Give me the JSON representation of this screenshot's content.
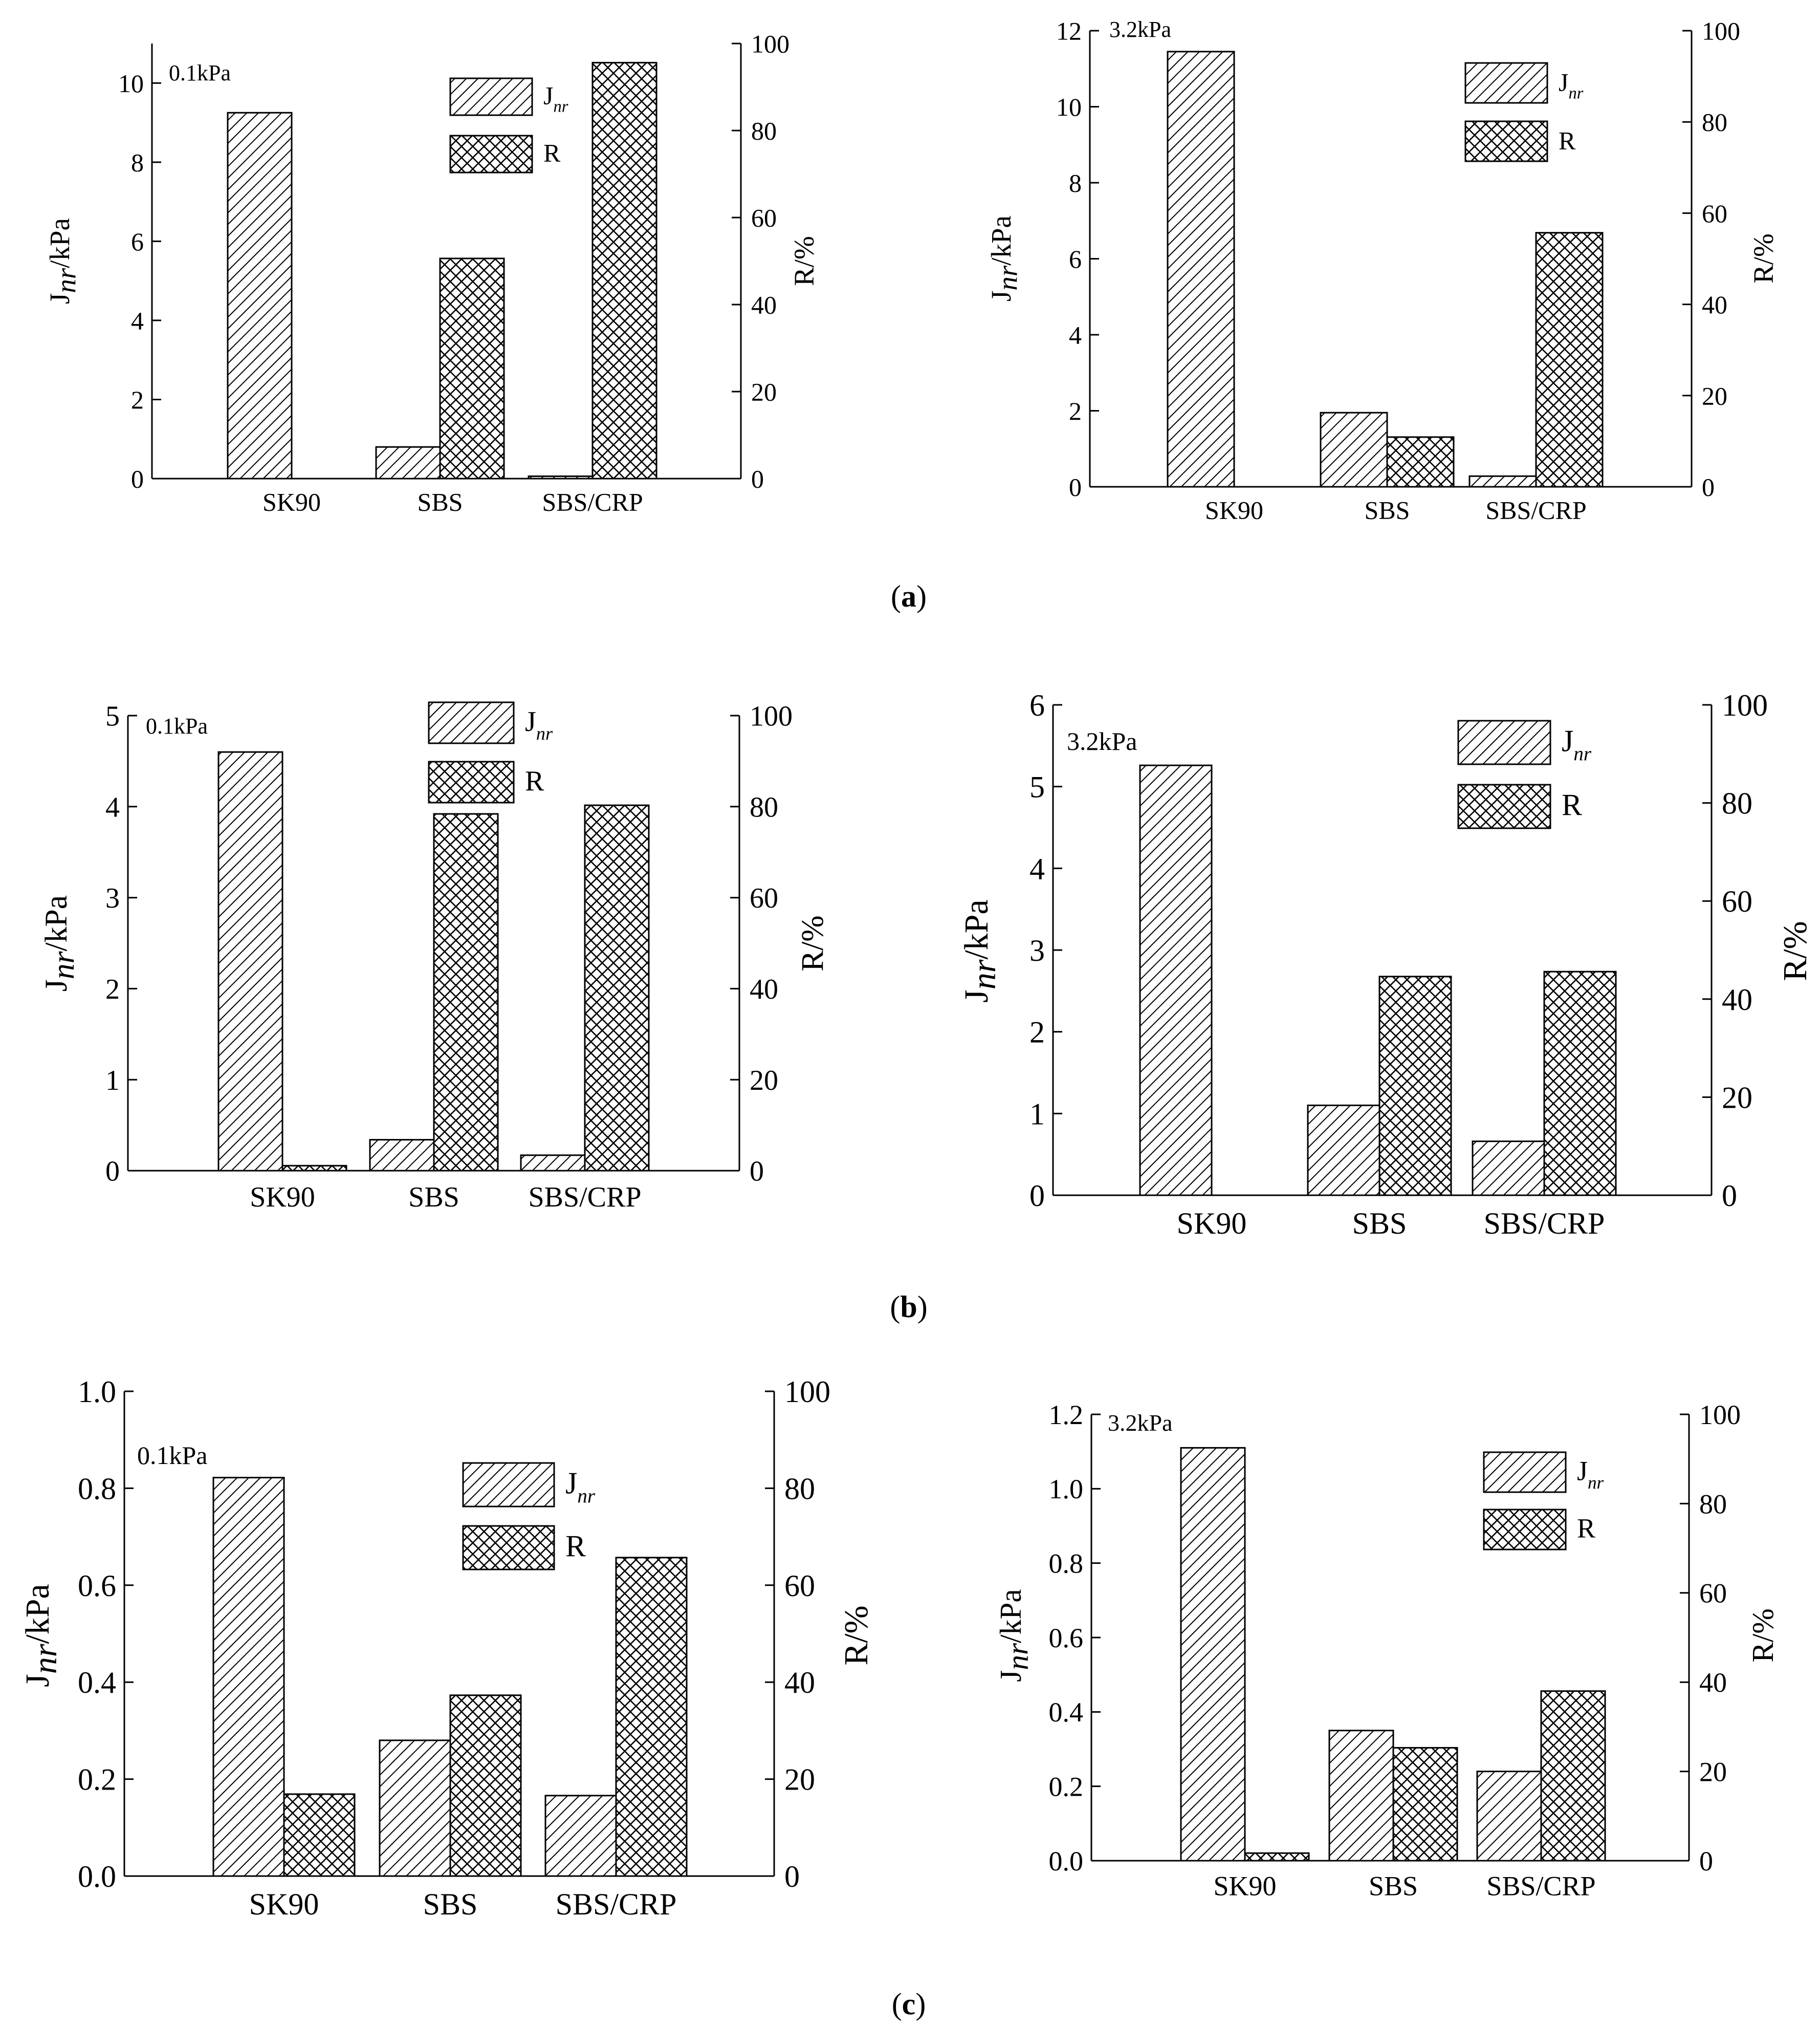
{
  "chart_data": [
    {
      "type": "bar",
      "panel": "a",
      "annotation": "0.1kPa",
      "categories": [
        "SK90",
        "SBS",
        "SBS/CRP"
      ],
      "left_axis": {
        "label": "Jnr/kPa",
        "ylim": [
          0,
          11
        ],
        "ticks": [
          "0",
          "2",
          "4",
          "6",
          "8",
          "10"
        ],
        "tick_values": [
          0,
          2,
          4,
          6,
          8,
          10
        ]
      },
      "right_axis": {
        "label": "R/%",
        "ylim": [
          0,
          100
        ],
        "ticks": [
          "0",
          "20",
          "40",
          "60",
          "80",
          "100"
        ],
        "tick_values": [
          0,
          20,
          40,
          60,
          80,
          100
        ]
      },
      "legend": {
        "entries": [
          "Jnr",
          "R"
        ],
        "position": "top-right"
      },
      "series": [
        {
          "name": "Jnr",
          "axis": "left",
          "values": [
            9.25,
            0.8,
            0.06
          ]
        },
        {
          "name": "R",
          "axis": "right",
          "values": [
            0,
            50.6,
            95.6
          ]
        }
      ]
    },
    {
      "type": "bar",
      "panel": "a",
      "annotation": "3.2kPa",
      "categories": [
        "SK90",
        "SBS",
        "SBS/CRP"
      ],
      "left_axis": {
        "label": "Jnr/kPa",
        "ylim": [
          0,
          12
        ],
        "ticks": [
          "0",
          "2",
          "4",
          "6",
          "8",
          "10",
          "12"
        ],
        "tick_values": [
          0,
          2,
          4,
          6,
          8,
          10,
          12
        ]
      },
      "right_axis": {
        "label": "R/%",
        "ylim": [
          0,
          100
        ],
        "ticks": [
          "0",
          "20",
          "40",
          "60",
          "80",
          "100"
        ],
        "tick_values": [
          0,
          20,
          40,
          60,
          80,
          100
        ]
      },
      "legend": {
        "entries": [
          "Jnr",
          "R"
        ],
        "position": "top-right"
      },
      "series": [
        {
          "name": "Jnr",
          "axis": "left",
          "values": [
            11.45,
            1.95,
            0.28
          ]
        },
        {
          "name": "R",
          "axis": "right",
          "values": [
            0,
            10.9,
            55.7
          ]
        }
      ]
    },
    {
      "type": "bar",
      "panel": "b",
      "annotation": "0.1kPa",
      "categories": [
        "SK90",
        "SBS",
        "SBS/CRP"
      ],
      "left_axis": {
        "label": "Jnr/kPa",
        "ylim": [
          0,
          5
        ],
        "ticks": [
          "0",
          "1",
          "2",
          "3",
          "4",
          "5"
        ],
        "tick_values": [
          0,
          1,
          2,
          3,
          4,
          5
        ]
      },
      "right_axis": {
        "label": "R/%",
        "ylim": [
          0,
          100
        ],
        "ticks": [
          "0",
          "20",
          "40",
          "60",
          "80",
          "100"
        ],
        "tick_values": [
          0,
          20,
          40,
          60,
          80,
          100
        ]
      },
      "legend": {
        "entries": [
          "Jnr",
          "R"
        ],
        "position": "top-right"
      },
      "series": [
        {
          "name": "Jnr",
          "axis": "left",
          "values": [
            4.6,
            0.34,
            0.17
          ]
        },
        {
          "name": "R",
          "axis": "right",
          "values": [
            1.1,
            78.4,
            80.3
          ]
        }
      ]
    },
    {
      "type": "bar",
      "panel": "b",
      "annotation": "3.2kPa",
      "categories": [
        "SK90",
        "SBS",
        "SBS/CRP"
      ],
      "left_axis": {
        "label": "Jnr/kPa",
        "ylim": [
          0,
          6
        ],
        "ticks": [
          "0",
          "1",
          "2",
          "3",
          "4",
          "5",
          "6"
        ],
        "tick_values": [
          0,
          1,
          2,
          3,
          4,
          5,
          6
        ]
      },
      "right_axis": {
        "label": "R/%",
        "ylim": [
          0,
          100
        ],
        "ticks": [
          "0",
          "20",
          "40",
          "60",
          "80",
          "100"
        ],
        "tick_values": [
          0,
          20,
          40,
          60,
          80,
          100
        ]
      },
      "legend": {
        "entries": [
          "Jnr",
          "R"
        ],
        "position": "top-right"
      },
      "series": [
        {
          "name": "Jnr",
          "axis": "left",
          "values": [
            5.26,
            1.1,
            0.66
          ]
        },
        {
          "name": "R",
          "axis": "right",
          "values": [
            0,
            44.6,
            45.6
          ]
        }
      ]
    },
    {
      "type": "bar",
      "panel": "c",
      "annotation": "0.1kPa",
      "categories": [
        "SK90",
        "SBS",
        "SBS/CRP"
      ],
      "left_axis": {
        "label": "Jnr/kPa",
        "ylim": [
          0,
          1.0
        ],
        "ticks": [
          "0.0",
          "0.2",
          "0.4",
          "0.6",
          "0.8",
          "1.0"
        ],
        "tick_values": [
          0,
          0.2,
          0.4,
          0.6,
          0.8,
          1.0
        ]
      },
      "right_axis": {
        "label": "R/%",
        "ylim": [
          0,
          100
        ],
        "ticks": [
          "0",
          "20",
          "40",
          "60",
          "80",
          "100"
        ],
        "tick_values": [
          0,
          20,
          40,
          60,
          80,
          100
        ]
      },
      "legend": {
        "entries": [
          "Jnr",
          "R"
        ],
        "position": "top-right"
      },
      "series": [
        {
          "name": "Jnr",
          "axis": "left",
          "values": [
            0.822,
            0.28,
            0.166
          ]
        },
        {
          "name": "R",
          "axis": "right",
          "values": [
            16.9,
            37.3,
            65.7
          ]
        }
      ]
    },
    {
      "type": "bar",
      "panel": "c",
      "annotation": "3.2kPa",
      "categories": [
        "SK90",
        "SBS",
        "SBS/CRP"
      ],
      "left_axis": {
        "label": "Jnr/kPa",
        "ylim": [
          0,
          1.2
        ],
        "ticks": [
          "0.0",
          "0.2",
          "0.4",
          "0.6",
          "0.8",
          "1.0",
          "1.2"
        ],
        "tick_values": [
          0,
          0.2,
          0.4,
          0.6,
          0.8,
          1.0,
          1.2
        ]
      },
      "right_axis": {
        "label": "R/%",
        "ylim": [
          0,
          100
        ],
        "ticks": [
          "0",
          "20",
          "40",
          "60",
          "80",
          "100"
        ],
        "tick_values": [
          0,
          20,
          40,
          60,
          80,
          100
        ]
      },
      "legend": {
        "entries": [
          "Jnr",
          "R"
        ],
        "position": "top-right"
      },
      "series": [
        {
          "name": "Jnr",
          "axis": "left",
          "values": [
            1.11,
            0.35,
            0.24
          ]
        },
        {
          "name": "R",
          "axis": "right",
          "values": [
            1.7,
            25.3,
            38.0
          ]
        }
      ]
    }
  ],
  "captions": [
    "a",
    "b",
    "c"
  ]
}
